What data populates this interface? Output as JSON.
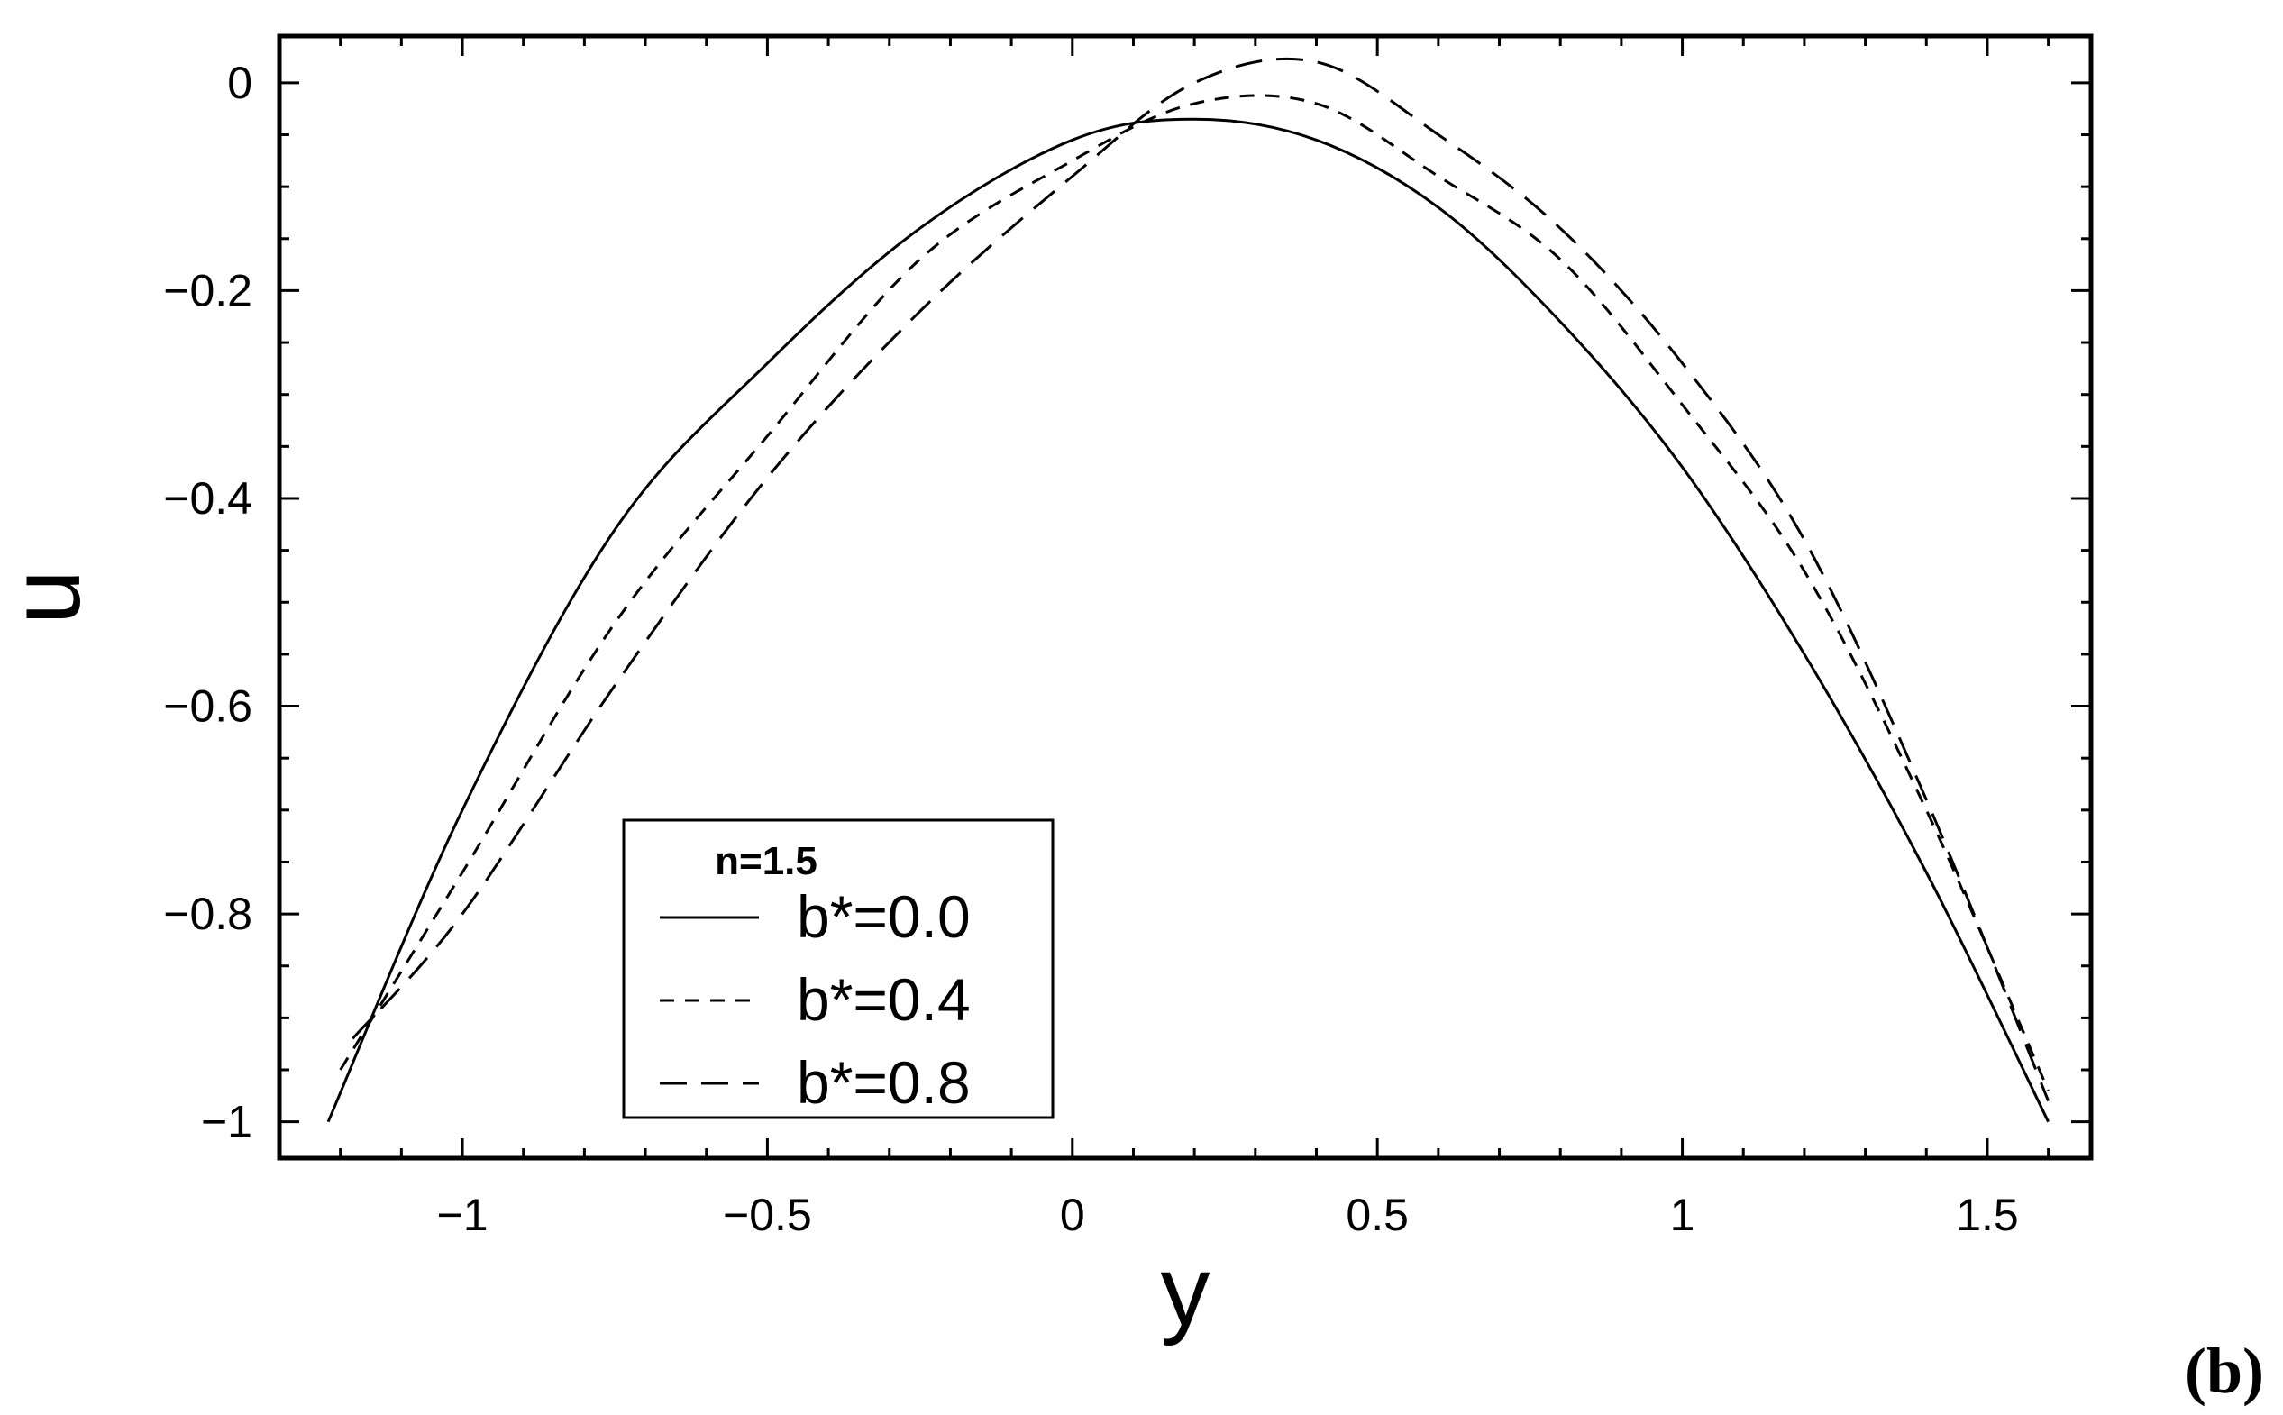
{
  "panel_label": "(b)",
  "chart_data": {
    "type": "line",
    "xlabel": "y",
    "ylabel": "u",
    "xlim": [
      -1.3,
      1.67
    ],
    "ylim": [
      -1.035,
      0.045
    ],
    "x_ticks": [
      -1,
      -0.5,
      0,
      0.5,
      1,
      1.5
    ],
    "x_tick_labels": [
      "−1",
      "−0.5",
      "0",
      "0.5",
      "1",
      "1.5"
    ],
    "y_ticks": [
      0,
      -0.2,
      -0.4,
      -0.6,
      -0.8,
      -1
    ],
    "y_tick_labels": [
      "0",
      "−0.2",
      "−0.4",
      "−0.6",
      "−0.8",
      "−1"
    ],
    "grid": false,
    "legend": {
      "title": "n=1.5",
      "placement": "bottom-left",
      "entries": [
        "b*=0.0",
        "b*=0.4",
        "b*=0.8"
      ]
    },
    "series": [
      {
        "name": "b*=0.0",
        "style": "solid",
        "x": [
          -1.22,
          -1.0,
          -0.75,
          -0.5,
          -0.25,
          0.0,
          0.2,
          0.4,
          0.6,
          0.8,
          1.0,
          1.2,
          1.4,
          1.6
        ],
        "y": [
          -1.0,
          -0.7,
          -0.43,
          -0.27,
          -0.14,
          -0.055,
          -0.035,
          -0.055,
          -0.12,
          -0.23,
          -0.37,
          -0.55,
          -0.76,
          -1.0
        ]
      },
      {
        "name": "b*=0.4",
        "style": "dashed",
        "x": [
          -1.2,
          -1.0,
          -0.75,
          -0.5,
          -0.25,
          0.0,
          0.2,
          0.4,
          0.6,
          0.8,
          1.0,
          1.2,
          1.4,
          1.6
        ],
        "y": [
          -0.95,
          -0.76,
          -0.52,
          -0.34,
          -0.17,
          -0.075,
          -0.02,
          -0.02,
          -0.09,
          -0.17,
          -0.31,
          -0.47,
          -0.7,
          -0.97
        ]
      },
      {
        "name": "b*=0.8",
        "style": "long-dashed",
        "x": [
          -1.18,
          -1.0,
          -0.75,
          -0.5,
          -0.25,
          0.0,
          0.2,
          0.4,
          0.6,
          0.8,
          1.0,
          1.2,
          1.4,
          1.6
        ],
        "y": [
          -0.92,
          -0.8,
          -0.58,
          -0.38,
          -0.22,
          -0.09,
          0.0,
          0.02,
          -0.05,
          -0.14,
          -0.27,
          -0.44,
          -0.69,
          -0.98
        ]
      }
    ]
  }
}
